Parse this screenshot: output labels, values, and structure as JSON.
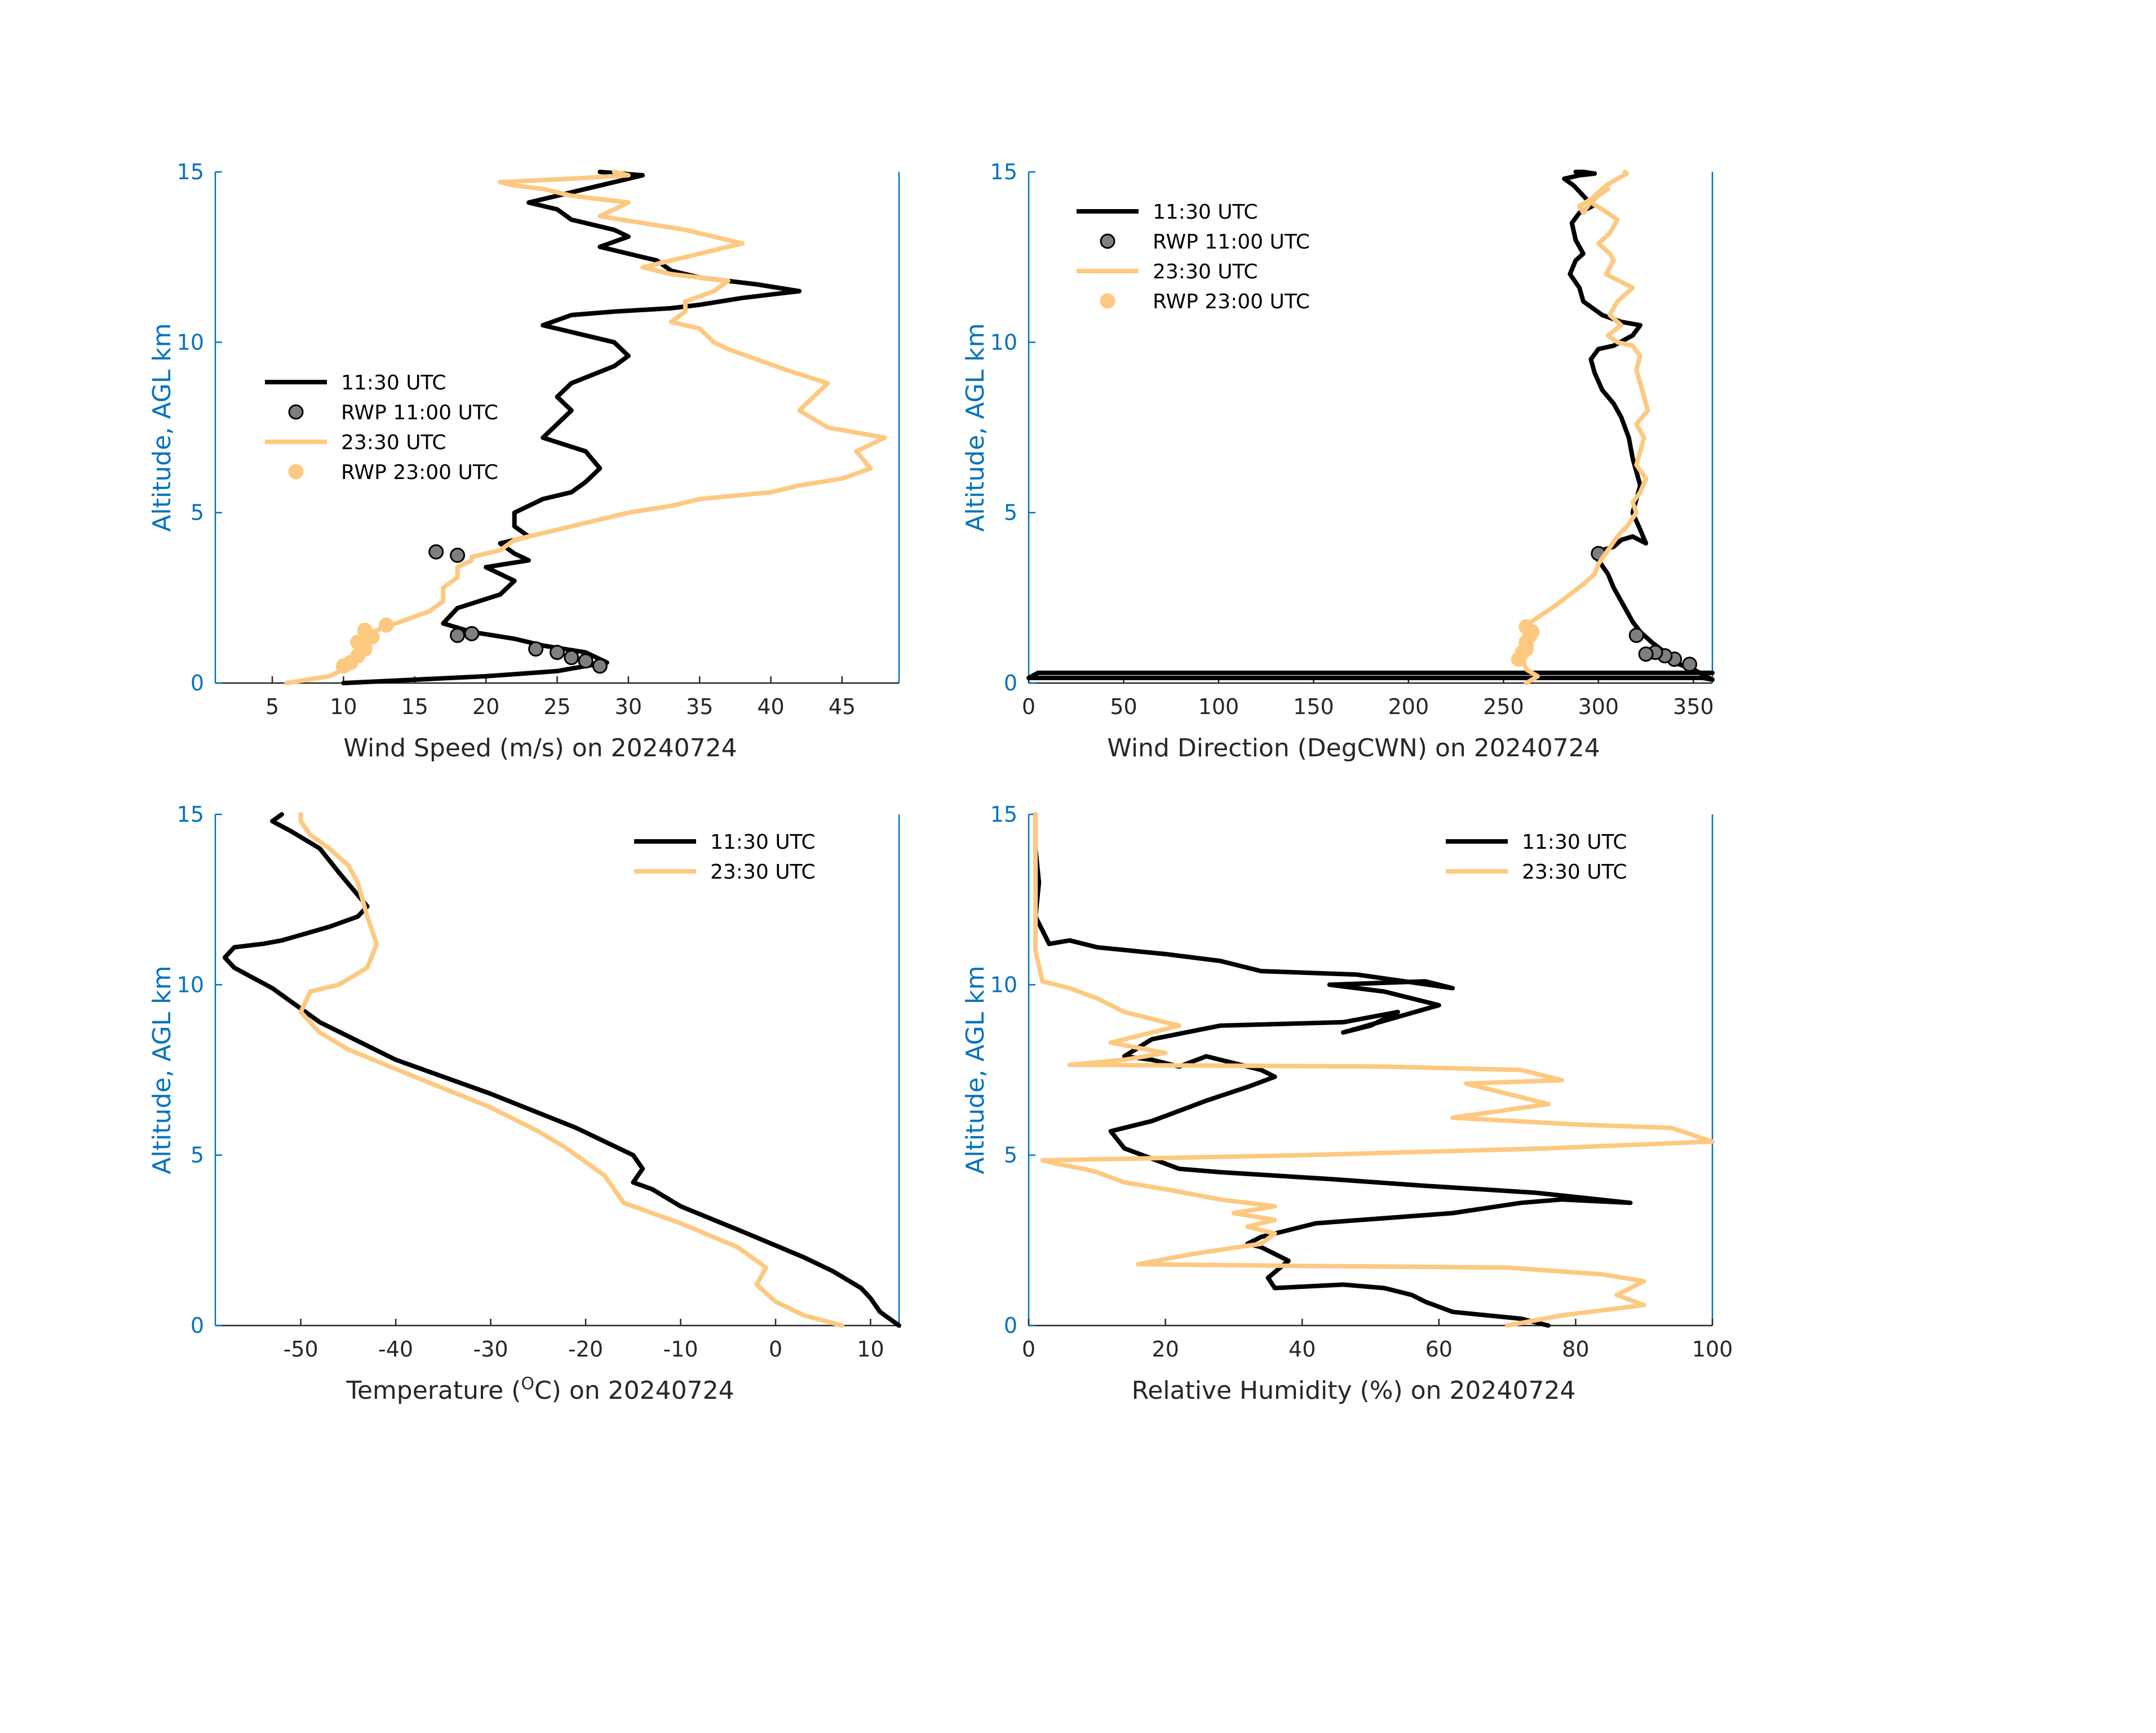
{
  "colors": {
    "black_series": "#000000",
    "orange_series": "#FDC981",
    "black_marker_fill": "#7f7f7f",
    "axis_y": "#0072BD",
    "axis_x": "#262626"
  },
  "chart_data": [
    {
      "type": "line",
      "xlabel": "Wind Speed (m/s) on 20240724",
      "ylabel": "Altitude, AGL km",
      "xlim": [
        1,
        49
      ],
      "ylim": [
        0,
        15
      ],
      "xticks": [
        5,
        10,
        15,
        20,
        25,
        30,
        35,
        40,
        45
      ],
      "yticks": [
        0,
        5,
        10,
        15
      ],
      "legend_position": "center-left",
      "series": [
        {
          "name": "11:30 UTC",
          "style": "line",
          "color": "#000000",
          "x": [
            10,
            15,
            20,
            25,
            27,
            28.5,
            27,
            24,
            22,
            19,
            17,
            18,
            21,
            22,
            20,
            23,
            22,
            21,
            23,
            22,
            22,
            24,
            26,
            27,
            28,
            27,
            24,
            25,
            26,
            25,
            26,
            29,
            30,
            29,
            27,
            24,
            26,
            29,
            33,
            35,
            38,
            42,
            39,
            35,
            33,
            32,
            28,
            30,
            29,
            26,
            25,
            23,
            26,
            28,
            30,
            31,
            28
          ],
          "y": [
            0,
            0.1,
            0.2,
            0.35,
            0.5,
            0.6,
            0.9,
            1.1,
            1.3,
            1.5,
            1.75,
            2.2,
            2.6,
            3.0,
            3.4,
            3.6,
            3.8,
            4.1,
            4.3,
            4.6,
            5.0,
            5.4,
            5.6,
            5.9,
            6.3,
            6.8,
            7.2,
            7.6,
            8.0,
            8.4,
            8.8,
            9.3,
            9.6,
            10.0,
            10.2,
            10.5,
            10.8,
            10.9,
            11.0,
            11.1,
            11.3,
            11.5,
            11.7,
            11.9,
            12.1,
            12.4,
            12.8,
            13.1,
            13.3,
            13.6,
            13.9,
            14.1,
            14.4,
            14.6,
            14.8,
            14.9,
            15.0
          ]
        },
        {
          "name": "RWP 11:00 UTC",
          "style": "marker",
          "color": "#000000",
          "fill": "#7f7f7f",
          "x": [
            28,
            27,
            26,
            25,
            23.5,
            19,
            18,
            16.5,
            18
          ],
          "y": [
            0.5,
            0.65,
            0.75,
            0.9,
            1.0,
            1.45,
            1.4,
            3.85,
            3.75
          ]
        },
        {
          "name": "23:30 UTC",
          "style": "line",
          "color": "#FDC981",
          "x": [
            6,
            9,
            10,
            11,
            11.5,
            11,
            12,
            14,
            16,
            17,
            17,
            18,
            18,
            19,
            19,
            21,
            22,
            24,
            26,
            28,
            30,
            33,
            35,
            40,
            42,
            45,
            47,
            46,
            48,
            44,
            42,
            43,
            44,
            41,
            39,
            37,
            36,
            35,
            33,
            34,
            34,
            36,
            37,
            33,
            31,
            33,
            35,
            38,
            36,
            34,
            31,
            28,
            29,
            30,
            26,
            24,
            22,
            21,
            26,
            30,
            29
          ],
          "y": [
            0,
            0.2,
            0.4,
            0.7,
            1.0,
            1.2,
            1.5,
            1.8,
            2.1,
            2.4,
            2.8,
            3.1,
            3.4,
            3.6,
            3.7,
            3.9,
            4.2,
            4.4,
            4.6,
            4.8,
            5.0,
            5.2,
            5.4,
            5.6,
            5.8,
            6.0,
            6.3,
            6.8,
            7.2,
            7.5,
            8.0,
            8.4,
            8.8,
            9.2,
            9.5,
            9.8,
            10.0,
            10.4,
            10.6,
            10.9,
            11.2,
            11.5,
            11.8,
            12.0,
            12.2,
            12.4,
            12.6,
            12.9,
            13.1,
            13.3,
            13.5,
            13.7,
            13.9,
            14.1,
            14.3,
            14.5,
            14.6,
            14.7,
            14.8,
            14.9,
            15.0
          ]
        },
        {
          "name": "RWP 23:00 UTC",
          "style": "marker",
          "color": "#FDC981",
          "fill": "#FDC981",
          "x": [
            10,
            10.5,
            11,
            11.5,
            11,
            12,
            13,
            11.5
          ],
          "y": [
            0.5,
            0.6,
            0.8,
            1.0,
            1.2,
            1.35,
            1.7,
            1.55
          ]
        }
      ]
    },
    {
      "type": "line",
      "xlabel": "Wind Direction (DegCWN) on 20240724",
      "ylabel": "Altitude, AGL km",
      "xlim": [
        0,
        360
      ],
      "ylim": [
        0,
        15
      ],
      "xticks": [
        0,
        50,
        100,
        150,
        200,
        250,
        300,
        350
      ],
      "yticks": [
        0,
        5,
        10,
        15
      ],
      "legend_position": "top-left",
      "series": [
        {
          "name": "11:30 UTC",
          "style": "line",
          "color": "#000000",
          "x": [
            360,
            355,
            352,
            5,
            0,
            355,
            360,
            350,
            340,
            335,
            328,
            322,
            318,
            315,
            312,
            308,
            305,
            300,
            298,
            302,
            308,
            312,
            318,
            325,
            322,
            318,
            320,
            322,
            320,
            318,
            316,
            312,
            308,
            302,
            298,
            296,
            300,
            308,
            318,
            322,
            312,
            302,
            292,
            290,
            285,
            288,
            292,
            288,
            286,
            290,
            297,
            292,
            287,
            282,
            290,
            298,
            292,
            288
          ],
          "y": [
            0.3,
            0.3,
            0.3,
            0.3,
            0.15,
            0.15,
            0.1,
            0.4,
            0.6,
            0.9,
            1.2,
            1.5,
            1.8,
            2.1,
            2.4,
            2.8,
            3.2,
            3.6,
            3.8,
            3.9,
            4.0,
            4.2,
            4.3,
            4.1,
            4.5,
            5.0,
            5.4,
            5.8,
            6.2,
            6.6,
            7.2,
            7.8,
            8.2,
            8.6,
            9.1,
            9.5,
            9.8,
            9.9,
            10.2,
            10.5,
            10.6,
            10.8,
            11.2,
            11.6,
            12.0,
            12.4,
            12.6,
            13.0,
            13.5,
            13.8,
            14.0,
            14.3,
            14.6,
            14.8,
            14.9,
            14.95,
            15.0,
            15.0
          ]
        },
        {
          "name": "RWP 11:00 UTC",
          "style": "marker",
          "color": "#000000",
          "fill": "#7f7f7f",
          "x": [
            348,
            340,
            335,
            330,
            325,
            320,
            300
          ],
          "y": [
            0.55,
            0.7,
            0.8,
            0.9,
            0.85,
            1.4,
            3.8
          ]
        },
        {
          "name": "23:30 UTC",
          "style": "line",
          "color": "#FDC981",
          "x": [
            262,
            268,
            262,
            260,
            262,
            260,
            262,
            262,
            270,
            278,
            285,
            292,
            298,
            300,
            305,
            310,
            315,
            320,
            318,
            322,
            325,
            320,
            322,
            324,
            320,
            326,
            324,
            322,
            320,
            322,
            318,
            310,
            305,
            312,
            306,
            310,
            318,
            304,
            308,
            306,
            300,
            306,
            310,
            302,
            296,
            300,
            305,
            302,
            296,
            290,
            292,
            298,
            304,
            310,
            315,
            314
          ],
          "y": [
            0,
            0.2,
            0.4,
            0.7,
            1.0,
            1.2,
            1.5,
            1.7,
            2.0,
            2.3,
            2.6,
            2.9,
            3.2,
            3.5,
            3.9,
            4.3,
            4.6,
            5.0,
            5.3,
            5.6,
            6.0,
            6.4,
            6.8,
            7.2,
            7.6,
            8.0,
            8.4,
            8.8,
            9.2,
            9.6,
            9.9,
            10.0,
            10.2,
            10.5,
            10.8,
            11.2,
            11.6,
            12.0,
            12.4,
            12.6,
            12.9,
            13.2,
            13.6,
            13.9,
            14.1,
            14.3,
            14.5,
            14.4,
            14.2,
            14.0,
            13.8,
            14.3,
            14.6,
            14.8,
            14.95,
            15.0
          ]
        },
        {
          "name": "RWP 23:00 UTC",
          "style": "marker",
          "color": "#FDC981",
          "fill": "#FDC981",
          "x": [
            258,
            260,
            262,
            262,
            264,
            265,
            262
          ],
          "y": [
            0.7,
            0.9,
            1.0,
            1.2,
            1.4,
            1.5,
            1.65
          ]
        }
      ]
    },
    {
      "type": "line",
      "xlabel_prefix": "Temperature (",
      "xlabel_sup": "O",
      "xlabel_suffix": "C) on 20240724",
      "ylabel": "Altitude, AGL km",
      "xlim": [
        -59,
        13
      ],
      "ylim": [
        0,
        15
      ],
      "xticks": [
        -50,
        -40,
        -30,
        -20,
        -10,
        0,
        10
      ],
      "yticks": [
        0,
        5,
        10,
        15
      ],
      "legend_position": "top-right",
      "series": [
        {
          "name": "11:30 UTC",
          "style": "line",
          "color": "#000000",
          "x": [
            13,
            11,
            10,
            9,
            6,
            3,
            -3,
            -10,
            -13,
            -15,
            -14,
            -15,
            -21,
            -30,
            -40,
            -48,
            -53,
            -57,
            -58,
            -57,
            -54,
            -52,
            -47,
            -44,
            -43,
            -46,
            -48,
            -51,
            -53,
            -52
          ],
          "y": [
            0,
            0.4,
            0.8,
            1.1,
            1.6,
            2.0,
            2.7,
            3.5,
            4.0,
            4.2,
            4.6,
            5.0,
            5.8,
            6.8,
            7.8,
            8.9,
            9.9,
            10.5,
            10.8,
            11.1,
            11.2,
            11.3,
            11.7,
            12.0,
            12.3,
            13.3,
            14.0,
            14.5,
            14.8,
            15.0
          ]
        },
        {
          "name": "23:30 UTC",
          "style": "line",
          "color": "#FDC981",
          "x": [
            7,
            3,
            0,
            -2,
            -1,
            -4,
            -10,
            -16,
            -18,
            -22,
            -25,
            -30,
            -38,
            -45,
            -48,
            -50,
            -49,
            -46,
            -43,
            -42,
            -43,
            -44,
            -45,
            -47,
            -49,
            -50,
            -50
          ],
          "y": [
            0,
            0.3,
            0.7,
            1.2,
            1.7,
            2.3,
            3.0,
            3.6,
            4.4,
            5.2,
            5.7,
            6.4,
            7.3,
            8.1,
            8.6,
            9.2,
            9.8,
            10.0,
            10.5,
            11.2,
            12.0,
            13.0,
            13.5,
            14.0,
            14.4,
            14.8,
            15.0
          ]
        }
      ]
    },
    {
      "type": "line",
      "xlabel": "Relative Humidity (%) on 20240724",
      "ylabel": "Altitude, AGL km",
      "xlim": [
        0,
        100
      ],
      "ylim": [
        0,
        15
      ],
      "xticks": [
        0,
        20,
        40,
        60,
        80,
        100
      ],
      "yticks": [
        0,
        5,
        10,
        15
      ],
      "legend_position": "top-right",
      "series": [
        {
          "name": "11:30 UTC",
          "style": "line",
          "color": "#000000",
          "x": [
            76,
            72,
            62,
            58,
            56,
            52,
            46,
            36,
            35,
            38,
            36,
            34,
            32,
            34,
            42,
            62,
            72,
            78,
            88,
            74,
            58,
            44,
            28,
            22,
            18,
            14,
            12,
            18,
            22,
            26,
            32,
            36,
            34,
            30,
            26,
            22,
            18,
            14,
            18,
            28,
            46,
            54,
            50,
            46,
            60,
            52,
            44,
            58,
            62,
            48,
            34,
            28,
            20,
            15,
            10,
            6,
            3,
            1,
            1.5,
            1,
            1
          ],
          "y": [
            0,
            0.2,
            0.4,
            0.7,
            0.9,
            1.1,
            1.2,
            1.1,
            1.4,
            1.9,
            2.1,
            2.3,
            2.4,
            2.6,
            3.0,
            3.3,
            3.6,
            3.7,
            3.6,
            3.9,
            4.1,
            4.3,
            4.5,
            4.6,
            4.9,
            5.2,
            5.7,
            6.0,
            6.3,
            6.6,
            7.0,
            7.3,
            7.5,
            7.7,
            7.9,
            7.6,
            7.8,
            7.9,
            8.4,
            8.8,
            8.9,
            9.2,
            8.8,
            8.6,
            9.4,
            9.8,
            10.0,
            10.1,
            9.9,
            10.3,
            10.4,
            10.7,
            10.9,
            11.0,
            11.1,
            11.3,
            11.2,
            12.0,
            13.0,
            14.0,
            15.0
          ]
        },
        {
          "name": "23:30 UTC",
          "style": "line",
          "color": "#FDC981",
          "x": [
            70,
            78,
            90,
            86,
            90,
            84,
            70,
            40,
            16,
            24,
            34,
            36,
            32,
            36,
            30,
            36,
            28,
            20,
            14,
            10,
            8,
            4,
            2,
            16,
            40,
            76,
            100,
            94,
            80,
            62,
            76,
            70,
            64,
            78,
            72,
            52,
            6,
            14,
            20,
            12,
            16,
            22,
            14,
            10,
            6,
            2,
            1,
            1,
            1,
            1
          ],
          "y": [
            0,
            0.3,
            0.6,
            0.9,
            1.3,
            1.5,
            1.7,
            1.75,
            1.8,
            2.1,
            2.4,
            2.7,
            2.9,
            3.1,
            3.3,
            3.5,
            3.7,
            4.0,
            4.2,
            4.5,
            4.6,
            4.75,
            4.85,
            4.9,
            5.0,
            5.2,
            5.4,
            5.8,
            5.9,
            6.1,
            6.5,
            6.8,
            7.1,
            7.2,
            7.5,
            7.6,
            7.65,
            7.8,
            8.0,
            8.3,
            8.5,
            8.8,
            9.2,
            9.6,
            9.9,
            10.1,
            11.0,
            12.0,
            13.0,
            15.0
          ]
        }
      ]
    }
  ]
}
